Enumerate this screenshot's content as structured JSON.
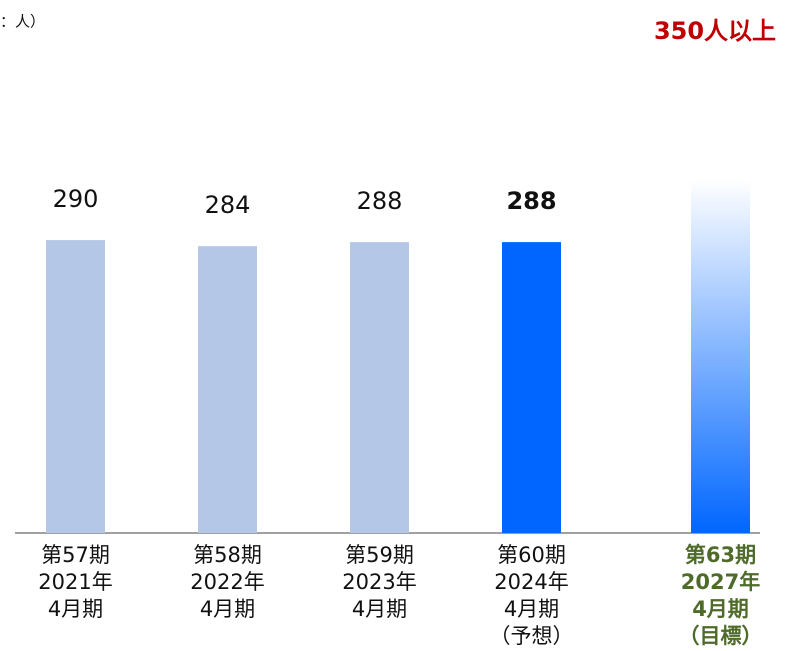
{
  "chart_data": {
    "type": "bar",
    "unit_note": "：人）",
    "categories": [
      [
        "第57期",
        "2021年",
        "4月期"
      ],
      [
        "第58期",
        "2022年",
        "4月期"
      ],
      [
        "第59期",
        "2023年",
        "4月期"
      ],
      [
        "第60期",
        "2024年",
        "4月期",
        "（予想）"
      ],
      [
        "第63期",
        "2027年",
        "4月期",
        "（目標）"
      ]
    ],
    "values": [
      290,
      284,
      288,
      288,
      350
    ],
    "value_labels": [
      "290",
      "284",
      "288",
      "288",
      "350人以上"
    ],
    "colors": [
      "#b4c7e7",
      "#b4c7e7",
      "#b4c7e7",
      "#0066ff",
      "#0066ff"
    ],
    "fade": [
      false,
      false,
      false,
      false,
      true
    ],
    "ylim": [
      0,
      400
    ]
  }
}
